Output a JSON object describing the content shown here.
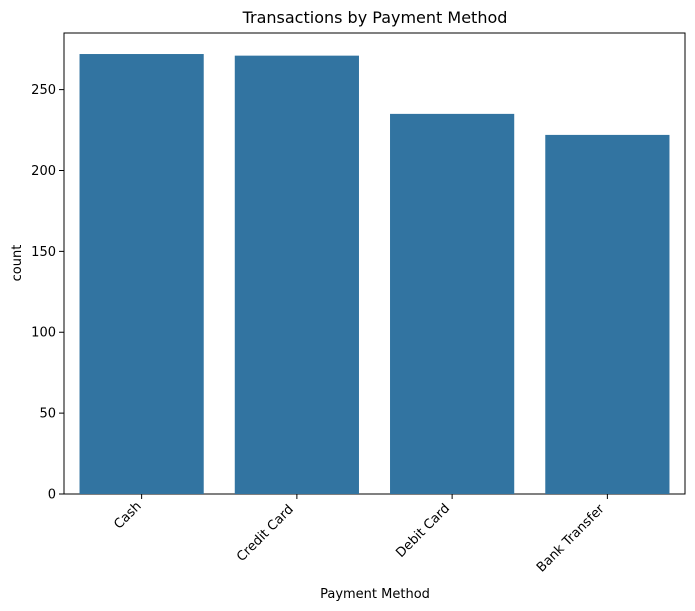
{
  "chart_data": {
    "type": "bar",
    "title": "Transactions by Payment Method",
    "xlabel": "Payment Method",
    "ylabel": "count",
    "categories": [
      "Cash",
      "Credit Card",
      "Debit Card",
      "Bank Transfer"
    ],
    "values": [
      272,
      271,
      235,
      222
    ],
    "ylim": [
      0,
      285
    ],
    "yticks": [
      0,
      50,
      100,
      150,
      200,
      250
    ],
    "x_tick_rotation_deg": 45,
    "grid": false,
    "legend": "none",
    "bar_color": "#3274a1"
  }
}
